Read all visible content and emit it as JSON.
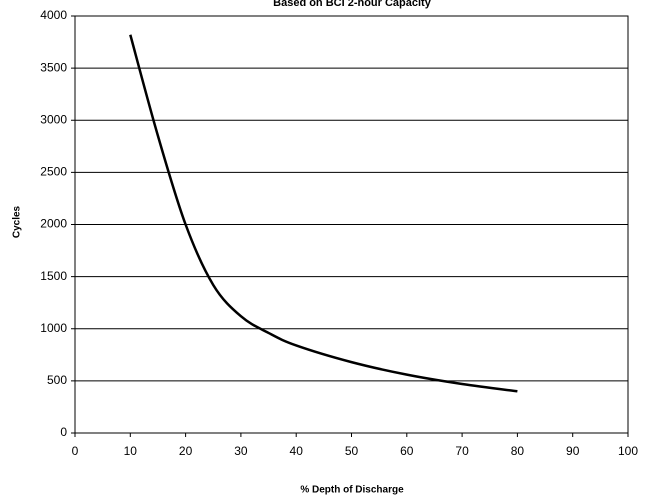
{
  "chart_data": {
    "type": "line",
    "subtitle": "Based on BCI 2-hour Capacity",
    "x_label": "% Depth of Discharge",
    "y_label": "Cycles",
    "series": [
      {
        "name": "Cycles",
        "color": "#000000",
        "x": [
          10,
          15,
          20,
          25,
          30,
          35,
          40,
          50,
          60,
          70,
          80
        ],
        "values": [
          3820,
          2850,
          2000,
          1420,
          1120,
          960,
          840,
          680,
          560,
          470,
          400
        ]
      }
    ],
    "xlim": [
      0,
      100
    ],
    "xticks": [
      0,
      10,
      20,
      30,
      40,
      50,
      60,
      70,
      80,
      90,
      100
    ],
    "ylim": [
      0,
      4000
    ],
    "yticks": [
      0,
      500,
      1000,
      1500,
      2000,
      2500,
      3000,
      3500,
      4000
    ],
    "grid": true
  }
}
